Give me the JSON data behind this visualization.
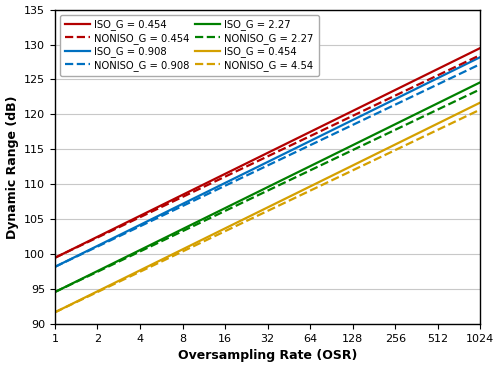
{
  "xlabel": "Oversampling Rate (OSR)",
  "ylabel": "Dynamic Range (dB)",
  "ylim": [
    90,
    135
  ],
  "xlim_log2": [
    0,
    10
  ],
  "yticks": [
    90,
    95,
    100,
    105,
    110,
    115,
    120,
    125,
    130,
    135
  ],
  "xtick_vals": [
    1,
    2,
    4,
    8,
    16,
    32,
    64,
    128,
    256,
    512,
    1024
  ],
  "xtick_labels": [
    "1",
    "2",
    "4",
    "8",
    "16",
    "32",
    "64",
    "128",
    "256",
    "512",
    "1024"
  ],
  "series": [
    {
      "label": "ISO_G = 0.454",
      "color": "#b30000",
      "linestyle": "solid",
      "y_at_osr1": 99.5,
      "slope": 3.0
    },
    {
      "label": "ISO_G = 0.908",
      "color": "#0070c0",
      "linestyle": "solid",
      "y_at_osr1": 98.2,
      "slope": 3.0
    },
    {
      "label": "ISO_G = 2.27",
      "color": "#008000",
      "linestyle": "solid",
      "y_at_osr1": 94.6,
      "slope": 3.0
    },
    {
      "label": "ISO_G = 0.454",
      "color": "#d4a000",
      "linestyle": "solid",
      "y_at_osr1": 91.7,
      "slope": 3.0
    },
    {
      "label": "NONISO_G = 0.454",
      "color": "#b30000",
      "linestyle": "dashed",
      "y_at_osr1": 99.5,
      "slope": 2.9
    },
    {
      "label": "NONISO_G = 0.908",
      "color": "#0070c0",
      "linestyle": "dashed",
      "y_at_osr1": 98.2,
      "slope": 2.9
    },
    {
      "label": "NONISO_G = 2.27",
      "color": "#008000",
      "linestyle": "dashed",
      "y_at_osr1": 94.6,
      "slope": 2.9
    },
    {
      "label": "NONISO_G = 4.54",
      "color": "#d4a000",
      "linestyle": "dashed",
      "y_at_osr1": 91.7,
      "slope": 2.9
    }
  ],
  "legend_rows": [
    {
      "iso_label": "ISO_G = 0.454",
      "noniso_label": "NONISO_G = 0.454",
      "color": "#b30000"
    },
    {
      "iso_label": "ISO_G = 0.908",
      "noniso_label": "NONISO_G = 0.908",
      "color": "#0070c0"
    },
    {
      "iso_label": "ISO_G = 2.27",
      "noniso_label": "NONISO_G = 2.27",
      "color": "#008000"
    },
    {
      "iso_label": "ISO_G = 0.454",
      "noniso_label": "NONISO_G = 4.54",
      "color": "#d4a000"
    }
  ],
  "background_color": "#ffffff",
  "grid_color": "#c8c8c8",
  "linewidth": 1.6,
  "figsize": [
    5.0,
    3.68
  ],
  "dpi": 100
}
